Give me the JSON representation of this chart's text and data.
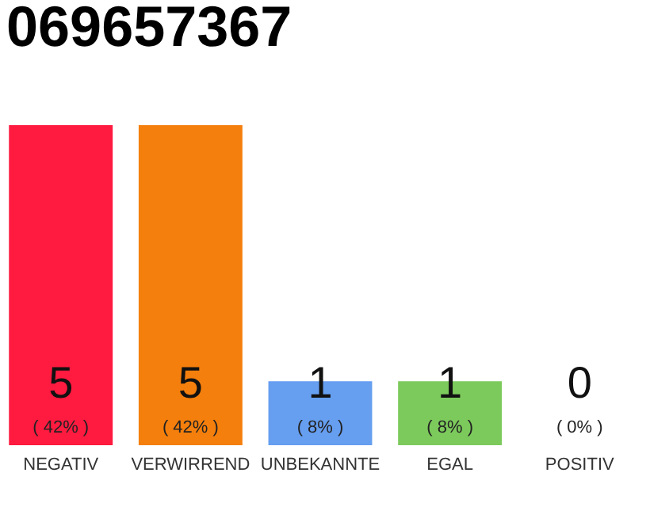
{
  "chart_data": {
    "type": "bar",
    "title": "069657367",
    "categories": [
      "NEGATIV",
      "VERWIRREND",
      "UNBEKANNTE",
      "EGAL",
      "POSITIV"
    ],
    "values": [
      5,
      5,
      1,
      1,
      0
    ],
    "colors": [
      "#ff1a40",
      "#f47f0c",
      "#669ef0",
      "#7cca5c",
      "#2aa84a"
    ],
    "data_labels": true,
    "grid": false,
    "tick_labels": "x",
    "annotations": [
      "( 42% )",
      "( 42% )",
      "( 8% )",
      "( 8% )",
      "( 0% )"
    ]
  }
}
